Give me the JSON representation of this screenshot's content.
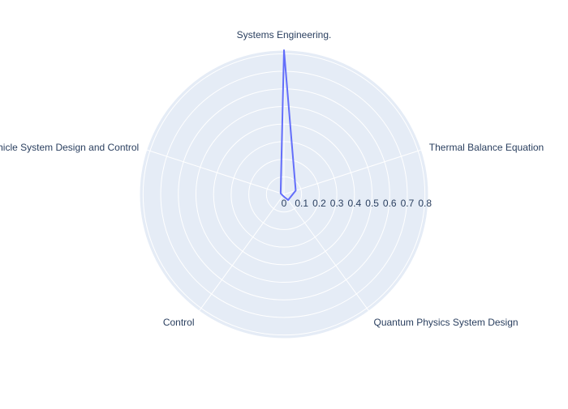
{
  "chart_data": {
    "type": "radar",
    "categories": [
      "Systems Engineering.",
      "Thermal Balance Equation",
      "Quantum Physics System Design",
      "Control",
      "Vehicle System Design and Control"
    ],
    "series": [
      {
        "values": [
          0.82,
          0.07,
          0.04,
          0.01,
          0.02
        ]
      }
    ],
    "radial_ticks": [
      "0",
      "0.1",
      "0.2",
      "0.3",
      "0.4",
      "0.5",
      "0.6",
      "0.7",
      "0.8"
    ],
    "rlim": [
      0,
      0.82
    ],
    "grid": true,
    "legend": "none",
    "title": "",
    "colors": {
      "polar_background": "#e5ecf6",
      "grid": "#ffffff",
      "line": "#636efa",
      "text": "#2a3f5f"
    }
  }
}
